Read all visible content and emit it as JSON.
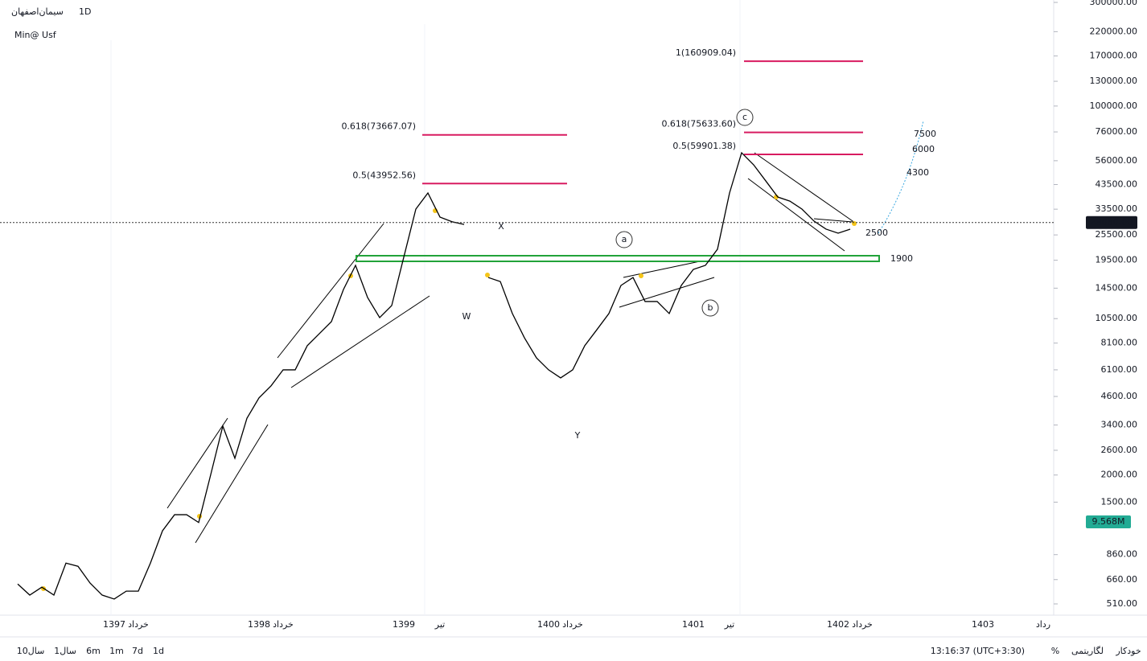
{
  "header": {
    "symbol": "سیمان‌اصفهان",
    "interval": "1D",
    "study": "Min@ Usf"
  },
  "chart_data": {
    "type": "line",
    "log_scale": true,
    "color": "#000000",
    "categories": [
      null,
      null,
      null,
      null,
      null,
      null,
      null,
      null,
      "1397",
      null,
      "خرداد",
      null,
      null,
      null,
      null,
      null,
      null,
      null,
      null,
      null,
      "1398",
      null,
      "خرداد",
      null,
      null,
      null,
      null,
      null,
      null,
      null,
      null,
      null,
      "1399",
      null,
      null,
      "تیر",
      null,
      null,
      null,
      null,
      null,
      null,
      null,
      null,
      "1400",
      null,
      "خرداد",
      null,
      null,
      null,
      null,
      null,
      null,
      null,
      null,
      null,
      "1401",
      null,
      null,
      "تیر",
      null,
      null,
      null,
      null,
      null,
      null,
      null,
      null,
      "1402",
      null,
      "خرداد",
      null,
      null,
      null,
      null,
      null,
      null,
      null,
      null,
      null,
      "1403",
      null,
      null,
      null,
      null,
      "رداد",
      null
    ],
    "series": [
      {
        "values": [
          630,
          560,
          609,
          560,
          786,
          760,
          636,
          560,
          537,
          584,
          584,
          786,
          1107,
          1313,
          1313,
          1209,
          2010,
          3360,
          2390,
          3650,
          4530,
          5150,
          6100,
          6100,
          7880,
          8950,
          10170,
          14300,
          18470,
          13130,
          10610,
          12060,
          20140,
          33540,
          39780,
          30810,
          29330,
          28500,
          null,
          16240,
          15560,
          11080,
          8570,
          6920,
          6100,
          5600,
          6100,
          7880,
          9330,
          11080,
          14920,
          16240,
          12590,
          12590,
          11080,
          14920,
          17690,
          18470,
          21910,
          39780,
          60930,
          53600,
          45220,
          38110,
          36500,
          33540,
          29530,
          27110,
          25980,
          27110,
          null,
          null,
          null,
          null,
          null,
          null,
          null,
          null,
          null,
          null,
          null,
          null,
          null,
          null,
          null,
          null,
          null
        ]
      }
    ],
    "ylim": [
      510,
      300000
    ],
    "yticks": [
      {
        "value": 300000,
        "label": "300000.00"
      },
      {
        "value": 220000,
        "label": "220000.00"
      },
      {
        "value": 170000,
        "label": "170000.00"
      },
      {
        "value": 130000,
        "label": "130000.00"
      },
      {
        "value": 100000,
        "label": "100000.00"
      },
      {
        "value": 76000,
        "label": "76000.00"
      },
      {
        "value": 56000,
        "label": "56000.00"
      },
      {
        "value": 43500,
        "label": "43500.00"
      },
      {
        "value": 33500,
        "label": "33500.00"
      },
      {
        "value": 25500,
        "label": "25500.00"
      },
      {
        "value": 19500,
        "label": "19500.00"
      },
      {
        "value": 14500,
        "label": "14500.00"
      },
      {
        "value": 10500,
        "label": "10500.00"
      },
      {
        "value": 8100,
        "label": "8100.00"
      },
      {
        "value": 6100,
        "label": "6100.00"
      },
      {
        "value": 4600,
        "label": "4600.00"
      },
      {
        "value": 3400,
        "label": "3400.00"
      },
      {
        "value": 2600,
        "label": "2600.00"
      },
      {
        "value": 2000,
        "label": "2000.00"
      },
      {
        "value": 1500,
        "label": "1500.00"
      },
      {
        "value": 860,
        "label": "860.00"
      },
      {
        "value": 660,
        "label": "660.00"
      },
      {
        "value": 510,
        "label": "510.00"
      }
    ],
    "last_price": {
      "value": 29080,
      "label": "29080.00"
    },
    "volume_label": "9.568M",
    "fib_levels": [
      {
        "value": 160909.04,
        "label": "1(160909.04)"
      },
      {
        "value": 73667.07,
        "label": "0.618(73667.07)"
      },
      {
        "value": 43952.56,
        "label": "0.5(43952.56)"
      },
      {
        "value": 75633.6,
        "label": "0.618(75633.60)"
      },
      {
        "value": 59901.38,
        "label": "0.5(59901.38)"
      }
    ],
    "annotations": [
      "W",
      "X",
      "Y",
      "a",
      "b",
      "c",
      "7500",
      "6000",
      "4300",
      "2500",
      "1900"
    ]
  },
  "toolbar": {
    "ranges": [
      "10سال",
      "1سال",
      "6m",
      "1m",
      "7d",
      "1d"
    ],
    "time": "13:16:37 (UTC+3:30)",
    "percent": "%",
    "log": "لگاریتمی",
    "auto": "خودکار"
  }
}
